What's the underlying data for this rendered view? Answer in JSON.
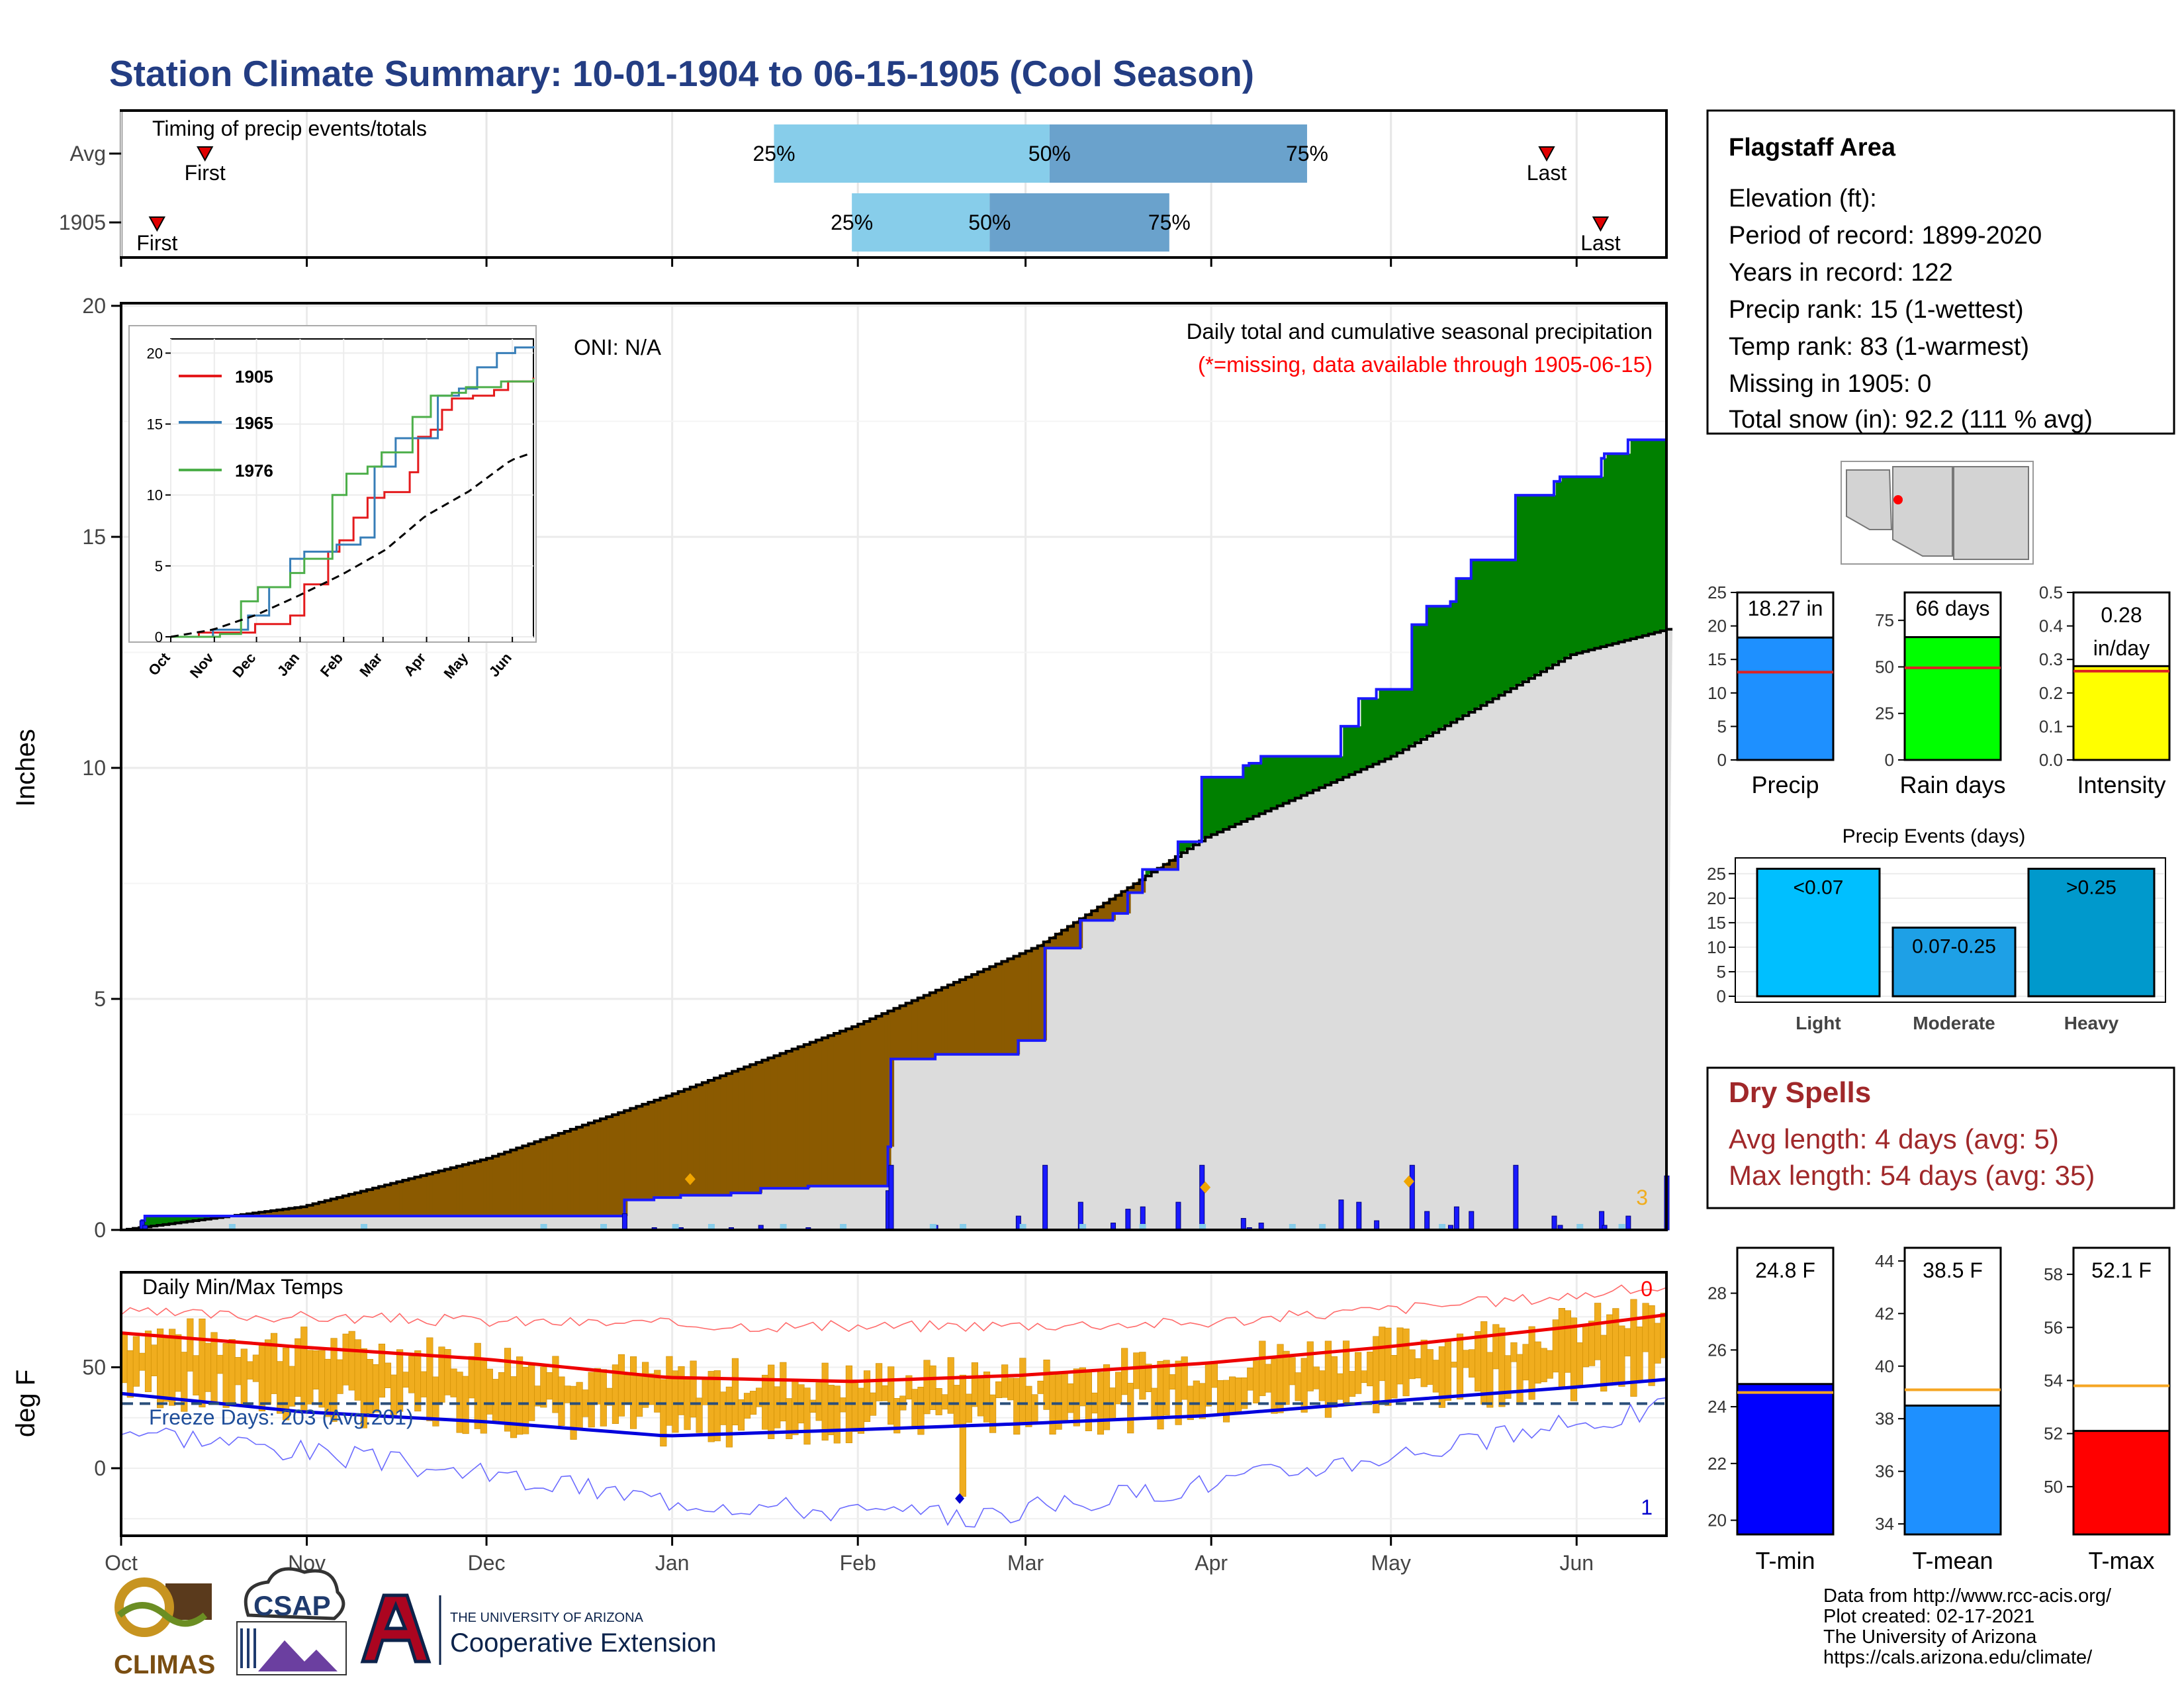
{
  "title": "Station Climate Summary: 10-01-1904 to 06-15-1905 (Cool Season)",
  "colors": {
    "title": "#233d83",
    "brown": "#8b5a00",
    "green": "#008000",
    "grey": "#dcdcdc",
    "blue": "#1a1aff",
    "lightblue": "#87cdea",
    "midblue": "#6aa2cc",
    "orange": "#f0ad1e",
    "red": "#ff0000",
    "drySpell": "#a0282a"
  },
  "months": [
    "Oct",
    "Nov",
    "Dec",
    "Jan",
    "Feb",
    "Mar",
    "Apr",
    "May",
    "Jun"
  ],
  "timing": {
    "label": "Timing of precip events/totals",
    "rows": [
      {
        "name": "Avg",
        "first": "First",
        "last": "Last",
        "first_day": 14,
        "last_day": 238,
        "p25_day": 109,
        "p50_day": 155,
        "p75_day": 198,
        "p25": "25%",
        "p50": "50%",
        "p75": "75%"
      },
      {
        "name": "1905",
        "first": "First",
        "last": "Last",
        "first_day": 6,
        "last_day": 247,
        "p25_day": 122,
        "p50_day": 145,
        "p75_day": 175,
        "p25": "25%",
        "p50": "50%",
        "p75": "75%"
      }
    ]
  },
  "main": {
    "title": "Daily total and cumulative seasonal precipitation",
    "missing_note": "(*=missing, data available through 1905-06-15)",
    "oni": "ONI: N/A",
    "ylabel": "Inches",
    "corner_count": "3",
    "yticks": [
      "0",
      "5",
      "10",
      "15",
      "20"
    ]
  },
  "inset": {
    "yticks": [
      "0",
      "5",
      "10",
      "15",
      "20"
    ],
    "months": [
      "Oct",
      "Nov",
      "Dec",
      "Jan",
      "Feb",
      "Mar",
      "Apr",
      "May",
      "Jun"
    ],
    "legend": [
      "1905",
      "1965",
      "1976"
    ]
  },
  "temps": {
    "title": "Daily Min/Max Temps",
    "freeze": "Freeze Days: 203 (Avg:201)",
    "ylabel": "deg F",
    "yticks": [
      "0",
      "50"
    ],
    "corner_top": "0",
    "corner_bottom": "1"
  },
  "station": {
    "name": "Flagstaff Area",
    "lines": [
      "Elevation (ft):",
      "Period of record: 1899-2020",
      "Years in record: 122",
      "Precip rank: 15 (1-wettest)",
      "Temp rank: 83 (1-warmest)",
      "Missing in 1905: 0",
      "Total snow (in): 92.2 (111 % avg)"
    ]
  },
  "precip_bars": [
    {
      "label": "Precip",
      "value_text": "18.27 in",
      "value": 18.27,
      "avg": 13.1,
      "ymax": 25,
      "yticks": [
        "0",
        "5",
        "10",
        "15",
        "20",
        "25"
      ],
      "color": "#1e90ff"
    },
    {
      "label": "Rain days",
      "value_text": "66 days",
      "value": 66,
      "avg": 49.5,
      "ymax": 90,
      "yticks": [
        "0",
        "25",
        "50",
        "75"
      ],
      "color": "#00ff00"
    },
    {
      "label": "Intensity",
      "value_text": "0.28 in/day",
      "value_text1": "0.28",
      "value_text2": "in/day",
      "value": 0.28,
      "avg": 0.265,
      "ymax": 0.5,
      "yticks": [
        "0.0",
        "0.1",
        "0.2",
        "0.3",
        "0.4",
        "0.5"
      ],
      "color": "#ffff00"
    }
  ],
  "events": {
    "title": "Precip Events (days)",
    "yticks": [
      "0",
      "5",
      "10",
      "15",
      "20",
      "25"
    ],
    "bars": [
      {
        "label": "Light",
        "range": "<0.07",
        "value": 26,
        "color": "#00bfff"
      },
      {
        "label": "Moderate",
        "range": "0.07-0.25",
        "value": 14,
        "color": "#1ea0e6"
      },
      {
        "label": "Heavy",
        "range": ">0.25",
        "value": 26,
        "color": "#0099cc"
      }
    ]
  },
  "dry_spells": {
    "title": "Dry Spells",
    "avg": "Avg length: 4 days (avg: 5)",
    "max": "Max length: 54 days (avg: 35)"
  },
  "temp_bars": [
    {
      "label": "T-min",
      "value_text": "24.8 F",
      "value": 24.8,
      "avg": 24.5,
      "ymin": 19.5,
      "ymax": 29.6,
      "yticks": [
        "20",
        "22",
        "24",
        "26",
        "28"
      ],
      "color": "#0000ff"
    },
    {
      "label": "T-mean",
      "value_text": "38.5 F",
      "value": 38.5,
      "avg": 39.1,
      "ymin": 33.6,
      "ymax": 44.5,
      "yticks": [
        "34",
        "36",
        "38",
        "40",
        "42",
        "44"
      ],
      "color": "#1e90ff"
    },
    {
      "label": "T-max",
      "value_text": "52.1 F",
      "value": 52.1,
      "avg": 53.8,
      "ymin": 48.2,
      "ymax": 59.0,
      "yticks": [
        "50",
        "52",
        "54",
        "56",
        "58"
      ],
      "color": "#ff0000"
    }
  ],
  "footer": {
    "lines": [
      "Data from http://www.rcc-acis.org/",
      "Plot created: 02-17-2021",
      "The University of Arizona",
      "https://cals.arizona.edu/climate/"
    ],
    "climas": "CLIMAS",
    "csap": "CSAP",
    "ua_small": "THE UNIVERSITY OF ARIZONA",
    "ua_big": "Cooperative Extension"
  },
  "chart_data": {
    "type": "area",
    "title": "Daily total and cumulative seasonal precipitation",
    "ylabel": "Inches",
    "ylim": [
      0,
      20
    ],
    "x_months": [
      "Oct",
      "Nov",
      "Dec",
      "Jan",
      "Feb",
      "Mar",
      "Apr",
      "May",
      "Jun"
    ],
    "cumulative_1905": {
      "day": [
        0,
        7,
        8,
        167,
        170,
        180,
        189,
        190,
        206,
        216,
        229,
        232,
        240,
        259,
        260,
        275,
        289,
        303,
        312,
        324,
        335,
        340,
        345,
        357,
        365,
        379,
        381,
        385,
        412,
        418,
        424,
        436,
        441,
        449,
        451,
        456,
        471,
        484,
        486,
        500,
        501,
        509,
        522
      ],
      "value": [
        0,
        0.2,
        0.3,
        0.3,
        0.65,
        0.7,
        0.75,
        0.75,
        0.8,
        0.9,
        0.9,
        0.95,
        0.95,
        1.8,
        3.7,
        3.8,
        3.8,
        4.1,
        6.1,
        6.7,
        6.85,
        7.3,
        7.8,
        8.4,
        9.8,
        10.05,
        10.1,
        10.25,
        10.9,
        11.5,
        11.7,
        13.1,
        13.5,
        13.6,
        14.1,
        14.5,
        15.9,
        16.2,
        16.3,
        16.7,
        16.8,
        17.1,
        18.27
      ]
    },
    "average_cumulative": {
      "day": [
        0,
        30,
        61,
        91,
        122,
        153,
        181,
        212,
        242,
        258
      ],
      "value": [
        0,
        0.5,
        1.55,
        2.9,
        4.4,
        6.15,
        8.5,
        10.25,
        12.45,
        13.0
      ]
    },
    "daily_precip_peaks": [
      {
        "day": 91,
        "value": 0.5
      },
      {
        "day": 95,
        "value": 1.35
      },
      {
        "day": 150,
        "value": 1.0
      },
      {
        "day": 181,
        "value": 0.85
      },
      {
        "day": 215,
        "value": 0.5
      },
      {
        "day": 220,
        "value": 1.0
      },
      {
        "day": 241,
        "value": 0.5
      }
    ],
    "inset": {
      "type": "line",
      "ylim": [
        0,
        21
      ],
      "series": [
        {
          "name": "1905",
          "x": [
            0,
            20,
            60,
            85,
            95,
            112,
            120,
            130,
            140,
            152,
            170,
            176,
            185,
            193,
            200,
            215,
            230,
            240,
            258
          ],
          "y": [
            0,
            0.3,
            0.9,
            1.5,
            3.7,
            6.0,
            6.8,
            8.4,
            9.8,
            10.2,
            11.6,
            14.1,
            14.6,
            16.0,
            16.8,
            17.0,
            17.4,
            18.0,
            18.27
          ]
        },
        {
          "name": "1965",
          "x": [
            0,
            30,
            55,
            70,
            85,
            95,
            105,
            118,
            135,
            145,
            160,
            175,
            190,
            205,
            218,
            232,
            245,
            258
          ],
          "y": [
            0,
            0.5,
            1.5,
            3.5,
            5.5,
            6.0,
            6.0,
            6.5,
            7.0,
            12.0,
            14.0,
            14.0,
            17.0,
            17.5,
            19.0,
            20.0,
            20.4,
            20.5
          ]
        },
        {
          "name": "1976",
          "x": [
            0,
            35,
            50,
            62,
            85,
            95,
            115,
            125,
            140,
            150,
            160,
            172,
            185,
            200,
            210,
            235,
            258
          ],
          "y": [
            0,
            0.2,
            2.5,
            3.5,
            4.5,
            5.5,
            10.0,
            11.5,
            12.0,
            13.0,
            13.0,
            15.5,
            17.0,
            17.2,
            17.6,
            18.0,
            18.2
          ]
        }
      ],
      "average_dashed": {
        "x": [
          0,
          30,
          61,
          91,
          122,
          153,
          181,
          212,
          242,
          258
        ],
        "y": [
          0,
          0.5,
          1.55,
          2.9,
          4.4,
          6.15,
          8.5,
          10.25,
          12.45,
          13.0
        ]
      }
    },
    "temperatures": {
      "ylabel": "deg F",
      "ylim": [
        -30,
        95
      ],
      "freeze_line": 32,
      "avg_max": {
        "day": [
          0,
          30,
          61,
          91,
          122,
          150,
          181,
          211,
          242,
          258
        ],
        "value": [
          67,
          60,
          54,
          45,
          43,
          46,
          52,
          60,
          70,
          76
        ]
      },
      "avg_min": {
        "day": [
          0,
          30,
          61,
          91,
          122,
          150,
          181,
          211,
          242,
          258
        ],
        "value": [
          37,
          28,
          23,
          16,
          19,
          22,
          26,
          33,
          40,
          44
        ]
      },
      "record_high": {
        "day": [
          0,
          60,
          120,
          180,
          240,
          258
        ],
        "value": [
          77,
          73,
          70,
          72,
          85,
          90
        ]
      },
      "record_low": {
        "day": [
          0,
          40,
          90,
          140,
          180,
          230,
          258
        ],
        "value": [
          20,
          5,
          -15,
          -25,
          -8,
          15,
          30
        ]
      }
    }
  }
}
